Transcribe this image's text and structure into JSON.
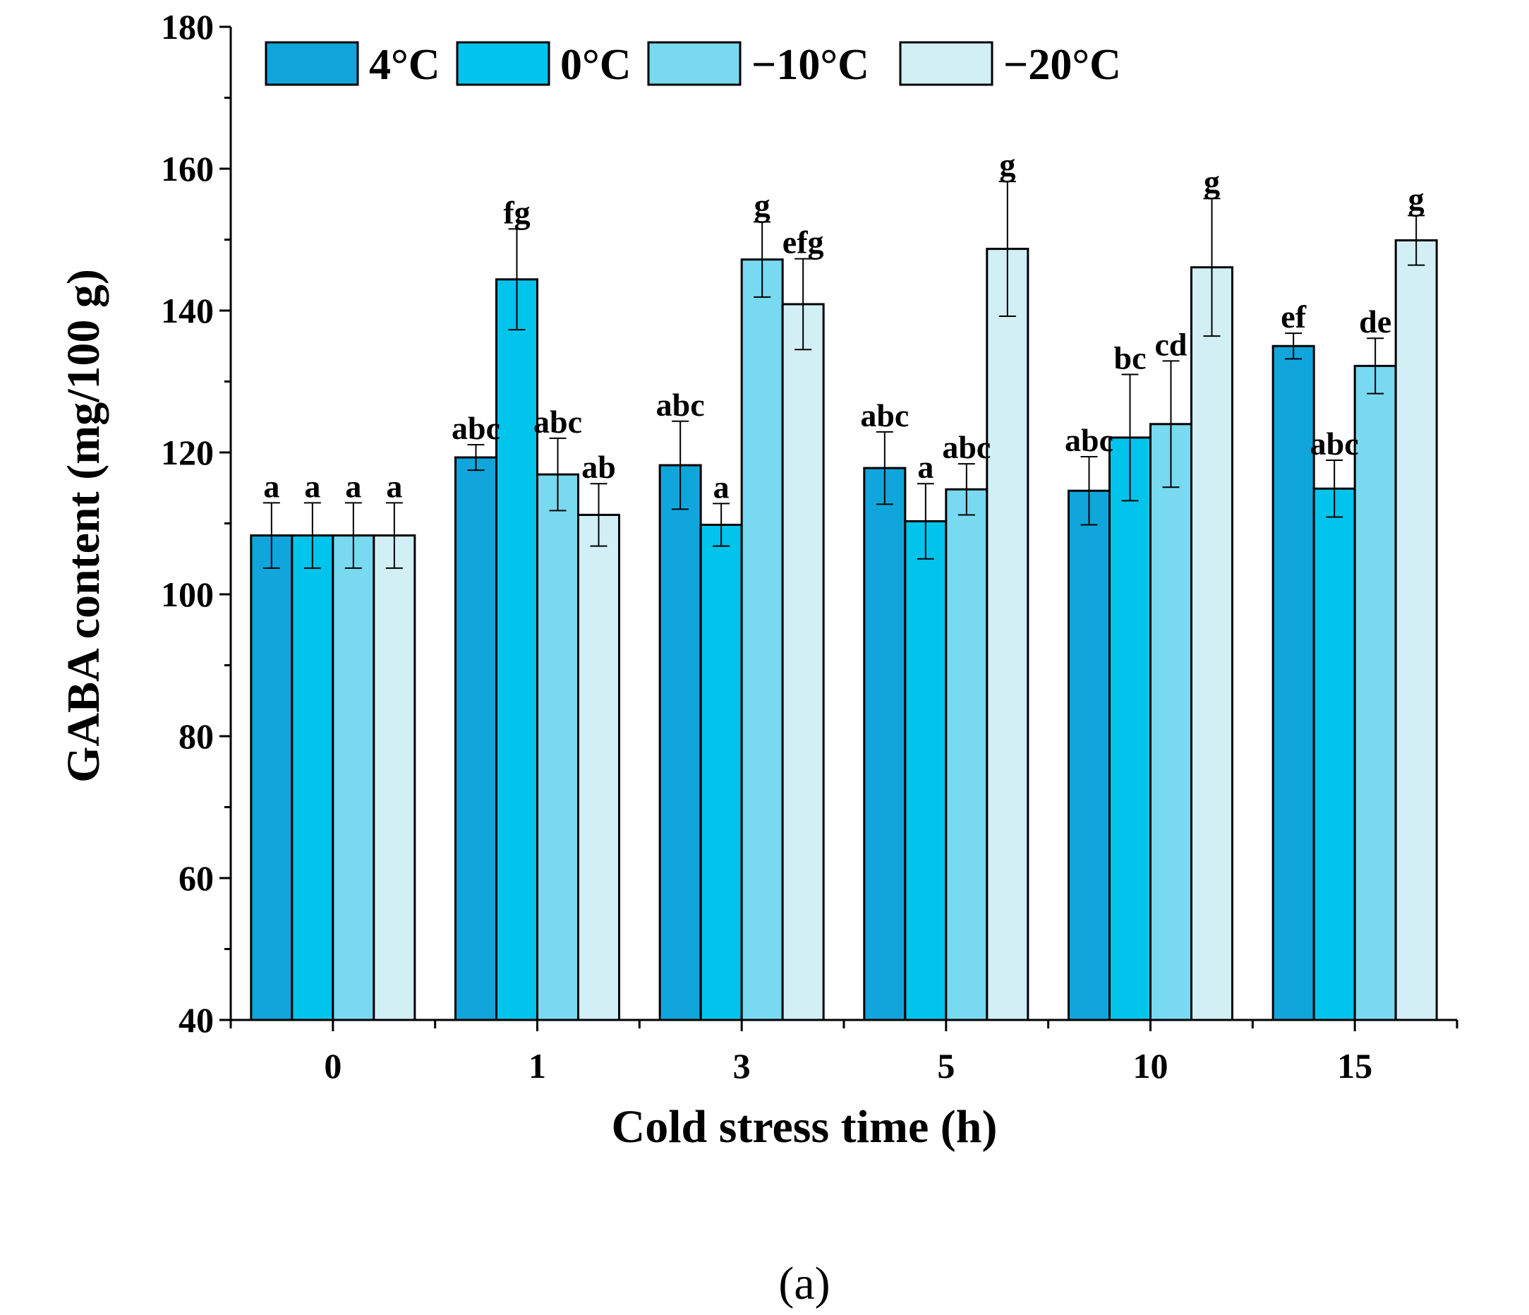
{
  "chart_data": {
    "type": "bar",
    "xlabel": "Cold stress time (h)",
    "ylabel": "GABA content (mg/100 g)",
    "ylim": [
      40,
      180
    ],
    "yticks": [
      40,
      60,
      80,
      100,
      120,
      140,
      160,
      180
    ],
    "categories": [
      "0",
      "1",
      "3",
      "5",
      "10",
      "15"
    ],
    "legend_position": "top",
    "series": [
      {
        "name": "4°C",
        "color": "#10a6dc",
        "values": [
          108.3,
          119.3,
          118.2,
          117.8,
          114.6,
          135.0
        ],
        "errors": [
          4.6,
          1.8,
          6.2,
          5.1,
          4.8,
          1.8
        ],
        "labels": [
          "a",
          "abc",
          "abc",
          "abc",
          "abc",
          "ef"
        ]
      },
      {
        "name": "0°C",
        "color": "#00c4ec",
        "values": [
          108.3,
          144.4,
          109.8,
          110.3,
          122.1,
          114.9
        ],
        "errors": [
          4.6,
          7.1,
          3.0,
          5.3,
          8.9,
          4.0
        ],
        "labels": [
          "a",
          "fg",
          "a",
          "a",
          "bc",
          "abc"
        ]
      },
      {
        "name": "−10°C",
        "color": "#78d9f0",
        "values": [
          108.3,
          116.9,
          147.2,
          114.8,
          124.0,
          132.2
        ],
        "errors": [
          4.6,
          5.1,
          5.3,
          3.6,
          8.9,
          3.9
        ],
        "labels": [
          "a",
          "abc",
          "g",
          "abc",
          "cd",
          "de"
        ]
      },
      {
        "name": "−20°C",
        "color": "#d2eff6",
        "values": [
          108.3,
          111.2,
          140.9,
          148.7,
          146.1,
          149.9
        ],
        "errors": [
          4.6,
          4.4,
          6.4,
          9.5,
          9.7,
          3.5
        ],
        "labels": [
          "a",
          "ab",
          "efg",
          "g",
          "g",
          "g"
        ]
      }
    ]
  },
  "panel_label": "(a)"
}
